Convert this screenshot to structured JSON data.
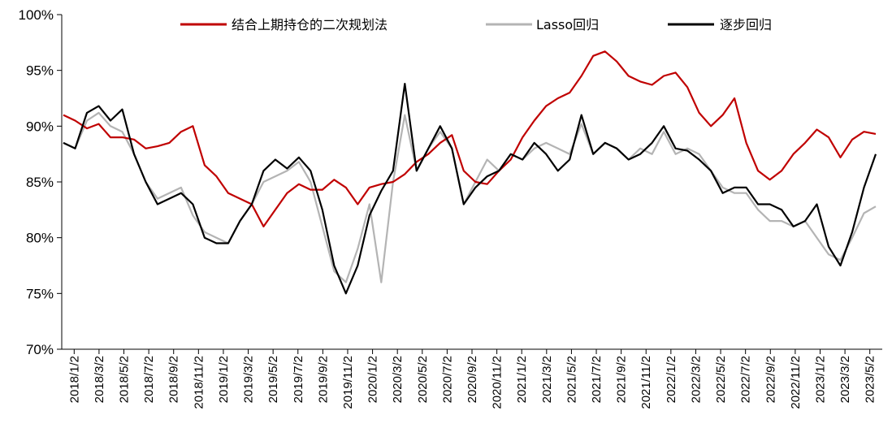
{
  "chart_data": {
    "type": "line",
    "title": "",
    "xlabel": "",
    "ylabel": "",
    "ylim": [
      0.7,
      1.0
    ],
    "y_ticks": [
      "100%",
      "95%",
      "90%",
      "85%",
      "80%",
      "75%",
      "70%"
    ],
    "y_tick_values": [
      1.0,
      0.95,
      0.9,
      0.85,
      0.8,
      0.75,
      0.7
    ],
    "x_ticks": [
      "2018/1/2",
      "2018/3/2",
      "2018/5/2",
      "2018/7/2",
      "2018/9/2",
      "2018/11/2",
      "2019/1/2",
      "2019/3/2",
      "2019/5/2",
      "2019/7/2",
      "2019/9/2",
      "2019/11/2",
      "2020/1/2",
      "2020/3/2",
      "2020/5/2",
      "2020/7/2",
      "2020/9/2",
      "2020/11/2",
      "2021/1/2",
      "2021/3/2",
      "2021/5/2",
      "2021/7/2",
      "2021/9/2",
      "2021/11/2",
      "2022/1/2",
      "2022/3/2",
      "2022/5/2",
      "2022/7/2",
      "2022/9/2",
      "2022/11/2",
      "2023/1/2",
      "2023/3/2",
      "2023/5/2"
    ],
    "grid": false,
    "legend_position": "top",
    "x": [
      0,
      1,
      2,
      3,
      4,
      5,
      6,
      7,
      8,
      9,
      10,
      11,
      12,
      13,
      14,
      15,
      16,
      17,
      18,
      19,
      20,
      21,
      22,
      23,
      24,
      25,
      26,
      27,
      28,
      29,
      30,
      31,
      32,
      33,
      34,
      35,
      36,
      37,
      38,
      39,
      40,
      41,
      42,
      43,
      44,
      45,
      46,
      47,
      48,
      49,
      50,
      51,
      52,
      53,
      54,
      55,
      56,
      57,
      58,
      59,
      60,
      61,
      62,
      63,
      64,
      65,
      66,
      67,
      68,
      69
    ],
    "series": [
      {
        "name": "结合上期持仓的二次规划法",
        "color": "#c00000",
        "values": [
          0.91,
          0.905,
          0.898,
          0.902,
          0.89,
          0.89,
          0.888,
          0.88,
          0.882,
          0.885,
          0.895,
          0.9,
          0.865,
          0.855,
          0.84,
          0.835,
          0.83,
          0.81,
          0.825,
          0.84,
          0.848,
          0.843,
          0.843,
          0.852,
          0.845,
          0.83,
          0.845,
          0.848,
          0.85,
          0.857,
          0.868,
          0.875,
          0.885,
          0.892,
          0.86,
          0.85,
          0.848,
          0.86,
          0.87,
          0.89,
          0.905,
          0.918,
          0.925,
          0.93,
          0.945,
          0.963,
          0.967,
          0.958,
          0.945,
          0.94,
          0.937,
          0.945,
          0.948,
          0.935,
          0.912,
          0.9,
          0.91,
          0.925,
          0.885,
          0.86,
          0.852,
          0.86,
          0.875,
          0.885,
          0.897,
          0.89,
          0.872,
          0.888,
          0.895,
          0.893
        ]
      },
      {
        "name": "Lasso回归",
        "color": "#b4b4b4",
        "values": [
          0.885,
          0.88,
          0.905,
          0.912,
          0.9,
          0.895,
          0.875,
          0.85,
          0.835,
          0.84,
          0.845,
          0.82,
          0.805,
          0.8,
          0.795,
          0.815,
          0.83,
          0.85,
          0.855,
          0.86,
          0.868,
          0.85,
          0.81,
          0.77,
          0.76,
          0.79,
          0.83,
          0.76,
          0.85,
          0.91,
          0.86,
          0.88,
          0.895,
          0.88,
          0.83,
          0.85,
          0.87,
          0.86,
          0.875,
          0.87,
          0.88,
          0.885,
          0.88,
          0.875,
          0.902,
          0.875,
          0.885,
          0.88,
          0.87,
          0.88,
          0.875,
          0.895,
          0.875,
          0.88,
          0.875,
          0.86,
          0.845,
          0.84,
          0.84,
          0.825,
          0.815,
          0.815,
          0.81,
          0.815,
          0.8,
          0.785,
          0.78,
          0.8,
          0.822,
          0.828
        ]
      },
      {
        "name": "逐步回归",
        "color": "#000000",
        "values": [
          0.885,
          0.88,
          0.912,
          0.918,
          0.905,
          0.915,
          0.875,
          0.85,
          0.83,
          0.835,
          0.84,
          0.83,
          0.8,
          0.795,
          0.795,
          0.815,
          0.83,
          0.86,
          0.87,
          0.862,
          0.872,
          0.86,
          0.825,
          0.775,
          0.75,
          0.775,
          0.82,
          0.842,
          0.86,
          0.938,
          0.86,
          0.88,
          0.9,
          0.88,
          0.83,
          0.845,
          0.855,
          0.86,
          0.875,
          0.87,
          0.885,
          0.875,
          0.86,
          0.87,
          0.91,
          0.875,
          0.885,
          0.88,
          0.87,
          0.875,
          0.885,
          0.9,
          0.88,
          0.878,
          0.87,
          0.86,
          0.84,
          0.845,
          0.845,
          0.83,
          0.83,
          0.825,
          0.81,
          0.815,
          0.83,
          0.792,
          0.775,
          0.805,
          0.845,
          0.875
        ]
      }
    ]
  }
}
